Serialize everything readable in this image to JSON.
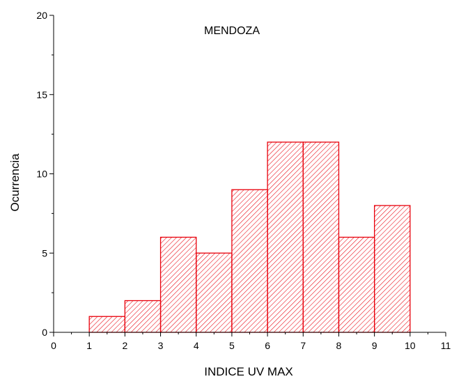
{
  "chart_data": {
    "type": "bar",
    "title": "MENDOZA",
    "xlabel": "INDICE UV MAX",
    "ylabel": "Ocurrencia",
    "xlim": [
      0,
      11
    ],
    "ylim": [
      0,
      20
    ],
    "x_ticks": [
      "0",
      "1",
      "2",
      "3",
      "4",
      "5",
      "6",
      "7",
      "8",
      "9",
      "10",
      "11"
    ],
    "y_ticks": [
      "0",
      "5",
      "10",
      "15",
      "20"
    ],
    "bins": [
      {
        "start": 1,
        "end": 2,
        "value": 1
      },
      {
        "start": 2,
        "end": 3,
        "value": 2
      },
      {
        "start": 3,
        "end": 4,
        "value": 6
      },
      {
        "start": 4,
        "end": 5,
        "value": 5
      },
      {
        "start": 5,
        "end": 6,
        "value": 9
      },
      {
        "start": 6,
        "end": 7,
        "value": 12
      },
      {
        "start": 7,
        "end": 8,
        "value": 12
      },
      {
        "start": 8,
        "end": 9,
        "value": 6
      },
      {
        "start": 9,
        "end": 10,
        "value": 8
      }
    ],
    "bar_color": "#e8000b",
    "fill": "diagonal-hatch",
    "grid": false,
    "legend": "none"
  }
}
